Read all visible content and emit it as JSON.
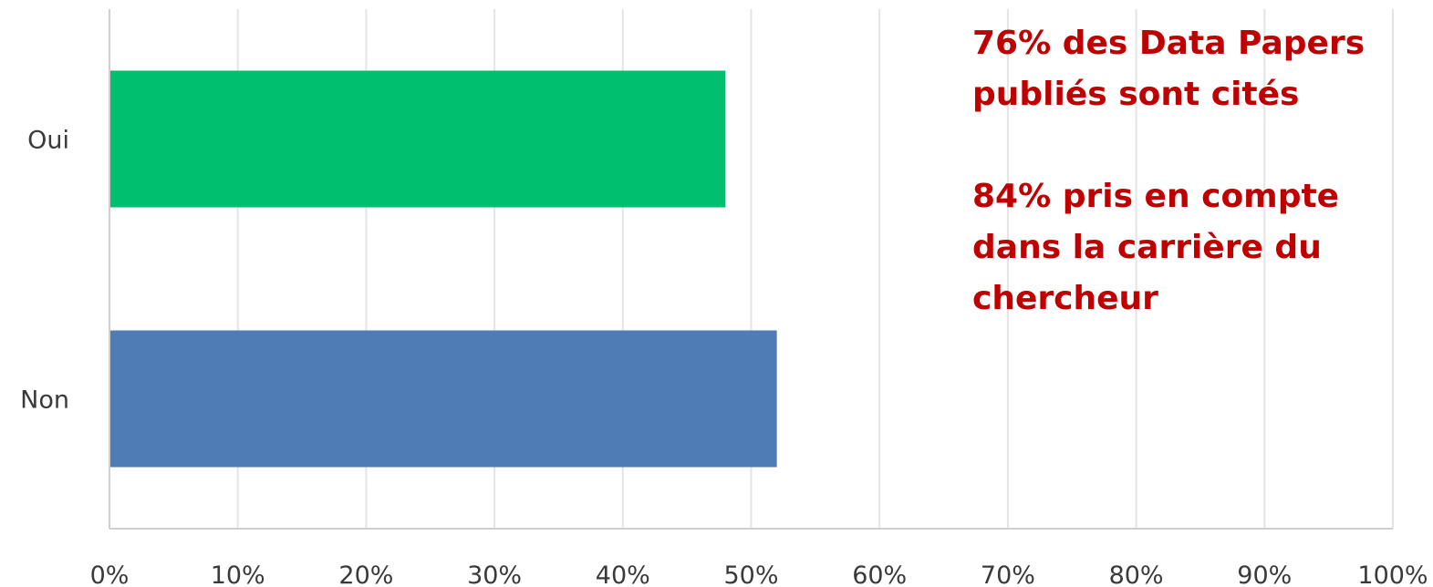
{
  "chart_data": {
    "type": "bar",
    "orientation": "horizontal",
    "categories": [
      "Oui",
      "Non"
    ],
    "values": [
      48,
      52
    ],
    "colors": [
      "#00bf6f",
      "#507cb6"
    ],
    "xlim": [
      0,
      100
    ],
    "x_ticks": [
      "0%",
      "10%",
      "20%",
      "30%",
      "40%",
      "50%",
      "60%",
      "70%",
      "80%",
      "90%",
      "100%"
    ],
    "grid": true,
    "title": "",
    "xlabel": "",
    "ylabel": ""
  },
  "annotations": {
    "line1": "76% des Data Papers",
    "line2": "publiés sont cités",
    "line3": "84% pris en compte",
    "line4": "dans la carrière du",
    "line5": "chercheur"
  }
}
